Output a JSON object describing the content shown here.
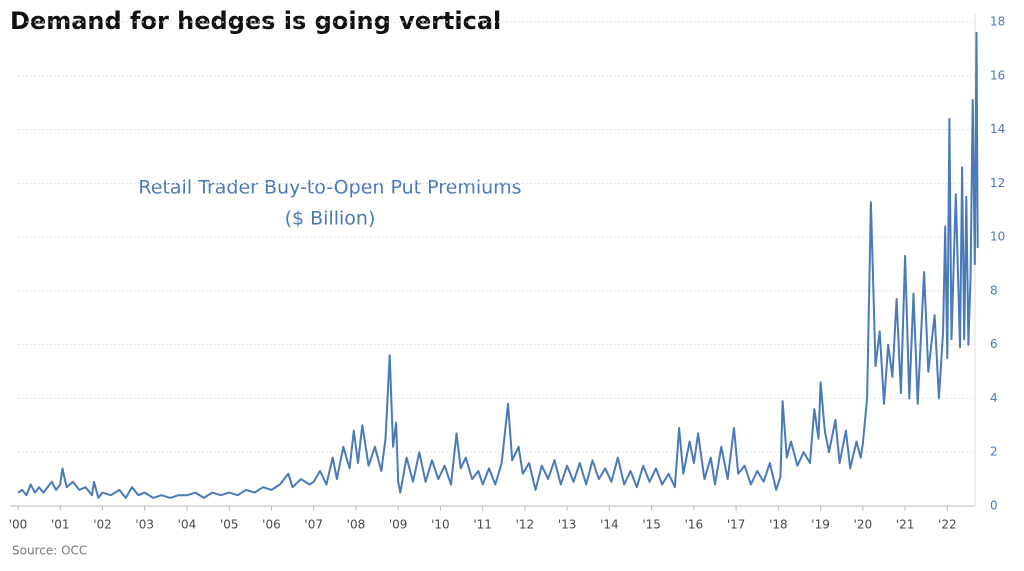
{
  "chart_data": {
    "type": "line",
    "title": "Demand for hedges is going vertical",
    "annotation": [
      "Retail Trader Buy-to-Open Put Premiums",
      "($ Billion)"
    ],
    "source": "Source: OCC",
    "x": [
      2000,
      2000.1,
      2000.2,
      2000.3,
      2000.4,
      2000.5,
      2000.6,
      2000.8,
      2000.9,
      2001.0,
      2001.05,
      2001.15,
      2001.3,
      2001.45,
      2001.6,
      2001.75,
      2001.8,
      2001.9,
      2002.0,
      2002.2,
      2002.4,
      2002.55,
      2002.7,
      2002.85,
      2003.0,
      2003.2,
      2003.4,
      2003.6,
      2003.8,
      2004.0,
      2004.2,
      2004.4,
      2004.6,
      2004.8,
      2005.0,
      2005.2,
      2005.4,
      2005.6,
      2005.8,
      2006.0,
      2006.2,
      2006.4,
      2006.5,
      2006.7,
      2006.9,
      2007.0,
      2007.15,
      2007.3,
      2007.45,
      2007.55,
      2007.7,
      2007.85,
      2007.95,
      2008.05,
      2008.15,
      2008.3,
      2008.45,
      2008.6,
      2008.7,
      2008.8,
      2008.88,
      2008.95,
      2009.0,
      2009.05,
      2009.2,
      2009.35,
      2009.5,
      2009.65,
      2009.8,
      2009.95,
      2010.1,
      2010.25,
      2010.38,
      2010.48,
      2010.6,
      2010.75,
      2010.9,
      2011.0,
      2011.15,
      2011.3,
      2011.45,
      2011.6,
      2011.7,
      2011.85,
      2011.95,
      2012.1,
      2012.25,
      2012.4,
      2012.55,
      2012.7,
      2012.85,
      2013.0,
      2013.15,
      2013.3,
      2013.45,
      2013.6,
      2013.75,
      2013.9,
      2014.05,
      2014.2,
      2014.35,
      2014.5,
      2014.65,
      2014.8,
      2014.95,
      2015.1,
      2015.25,
      2015.4,
      2015.55,
      2015.65,
      2015.75,
      2015.9,
      2016.0,
      2016.1,
      2016.25,
      2016.4,
      2016.5,
      2016.65,
      2016.8,
      2016.95,
      2017.05,
      2017.2,
      2017.35,
      2017.5,
      2017.65,
      2017.8,
      2017.95,
      2018.05,
      2018.1,
      2018.2,
      2018.3,
      2018.45,
      2018.6,
      2018.75,
      2018.85,
      2018.95,
      2019.0,
      2019.1,
      2019.2,
      2019.35,
      2019.45,
      2019.6,
      2019.7,
      2019.85,
      2019.95,
      2020.0,
      2020.1,
      2020.19,
      2020.25,
      2020.3,
      2020.4,
      2020.5,
      2020.6,
      2020.7,
      2020.8,
      2020.9,
      2021.0,
      2021.1,
      2021.2,
      2021.3,
      2021.45,
      2021.55,
      2021.7,
      2021.8,
      2021.9,
      2021.95,
      2022.0,
      2022.05,
      2022.1,
      2022.2,
      2022.3,
      2022.35,
      2022.4,
      2022.45,
      2022.5,
      2022.55,
      2022.6,
      2022.65,
      2022.69,
      2022.72
    ],
    "series": [
      {
        "name": "Retail Trader Buy-to-Open Put Premiums",
        "color": "#4a7ab8",
        "values": [
          0.5,
          0.6,
          0.4,
          0.8,
          0.5,
          0.7,
          0.5,
          0.9,
          0.6,
          0.8,
          1.4,
          0.7,
          0.9,
          0.6,
          0.7,
          0.4,
          0.9,
          0.3,
          0.5,
          0.4,
          0.6,
          0.3,
          0.7,
          0.4,
          0.5,
          0.3,
          0.4,
          0.3,
          0.4,
          0.4,
          0.5,
          0.3,
          0.5,
          0.4,
          0.5,
          0.4,
          0.6,
          0.5,
          0.7,
          0.6,
          0.8,
          1.2,
          0.7,
          1.0,
          0.8,
          0.9,
          1.3,
          0.8,
          1.8,
          1.0,
          2.2,
          1.4,
          2.8,
          1.6,
          3.0,
          1.5,
          2.2,
          1.3,
          2.5,
          5.6,
          2.2,
          3.1,
          0.9,
          0.5,
          1.8,
          0.9,
          2.0,
          0.9,
          1.7,
          1.0,
          1.5,
          0.8,
          2.7,
          1.4,
          1.8,
          1.0,
          1.3,
          0.8,
          1.4,
          0.8,
          1.6,
          3.8,
          1.7,
          2.2,
          1.2,
          1.6,
          0.6,
          1.5,
          1.0,
          1.7,
          0.8,
          1.5,
          0.9,
          1.6,
          0.8,
          1.7,
          1.0,
          1.4,
          0.9,
          1.8,
          0.8,
          1.3,
          0.7,
          1.5,
          0.9,
          1.4,
          0.8,
          1.2,
          0.7,
          2.9,
          1.2,
          2.4,
          1.6,
          2.7,
          1.0,
          1.8,
          0.8,
          2.2,
          1.0,
          2.9,
          1.2,
          1.5,
          0.8,
          1.3,
          0.9,
          1.6,
          0.6,
          1.1,
          3.9,
          1.8,
          2.4,
          1.5,
          2.0,
          1.6,
          3.6,
          2.5,
          4.6,
          2.8,
          2.0,
          3.2,
          1.6,
          2.8,
          1.4,
          2.4,
          1.8,
          2.3,
          4.0,
          11.3,
          8.0,
          5.2,
          6.5,
          3.8,
          6.0,
          4.8,
          7.7,
          4.2,
          9.3,
          4.0,
          7.9,
          3.8,
          8.7,
          5.0,
          7.1,
          4.0,
          6.5,
          10.4,
          5.5,
          14.4,
          6.2,
          11.6,
          5.9,
          12.6,
          6.2,
          11.5,
          6.0,
          8.6,
          15.1,
          9.0,
          17.6,
          9.6
        ]
      }
    ],
    "xlim": [
      2000,
      2022.75
    ],
    "xticks": [
      {
        "value": 2000,
        "label": "'00"
      },
      {
        "value": 2001,
        "label": "'01"
      },
      {
        "value": 2002,
        "label": "'02"
      },
      {
        "value": 2003,
        "label": "'03"
      },
      {
        "value": 2004,
        "label": "'04"
      },
      {
        "value": 2005,
        "label": "'05"
      },
      {
        "value": 2006,
        "label": "'06"
      },
      {
        "value": 2007,
        "label": "'07"
      },
      {
        "value": 2008,
        "label": "'08"
      },
      {
        "value": 2009,
        "label": "'09"
      },
      {
        "value": 2010,
        "label": "'10"
      },
      {
        "value": 2011,
        "label": "'11"
      },
      {
        "value": 2012,
        "label": "'12"
      },
      {
        "value": 2013,
        "label": "'13"
      },
      {
        "value": 2014,
        "label": "'14"
      },
      {
        "value": 2015,
        "label": "'15"
      },
      {
        "value": 2016,
        "label": "'16"
      },
      {
        "value": 2017,
        "label": "'17"
      },
      {
        "value": 2018,
        "label": "'18"
      },
      {
        "value": 2019,
        "label": "'19"
      },
      {
        "value": 2020,
        "label": "'20"
      },
      {
        "value": 2021,
        "label": "'21"
      },
      {
        "value": 2022,
        "label": "'22"
      }
    ],
    "ylim": [
      0,
      18
    ],
    "yticks": [
      0,
      2,
      4,
      6,
      8,
      10,
      12,
      14,
      16,
      18
    ],
    "grid": true
  }
}
